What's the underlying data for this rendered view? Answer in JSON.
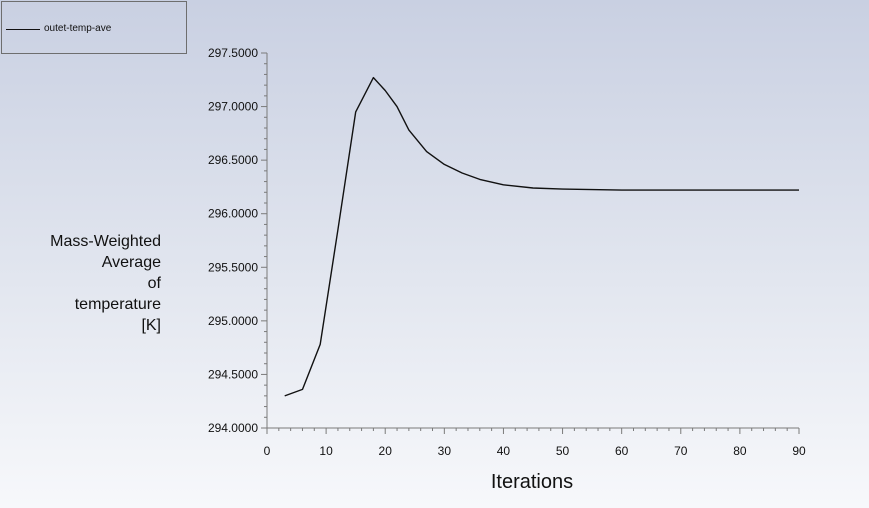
{
  "chart_data": {
    "type": "line",
    "xlabel": "Iterations",
    "ylabel_lines": [
      "Mass-Weighted",
      "Average",
      "of",
      "temperature",
      "[K]"
    ],
    "xlim": [
      0,
      90
    ],
    "ylim": [
      294.0,
      297.5
    ],
    "x_ticks": [
      0,
      10,
      20,
      30,
      40,
      50,
      60,
      70,
      80,
      90
    ],
    "y_ticks": [
      294.0,
      294.5,
      295.0,
      295.5,
      296.0,
      296.5,
      297.0,
      297.5
    ],
    "y_tick_labels": [
      "294.0000",
      "294.5000",
      "295.0000",
      "295.5000",
      "296.0000",
      "296.5000",
      "297.0000",
      "297.5000"
    ],
    "legend_position": "top-left",
    "grid": false,
    "series": [
      {
        "name": "outet-temp-ave",
        "color": "#111111",
        "x": [
          3,
          6,
          9,
          12,
          15,
          18,
          20,
          22,
          24,
          27,
          30,
          33,
          36,
          40,
          45,
          50,
          55,
          60,
          70,
          80,
          90
        ],
        "y": [
          294.3,
          294.36,
          294.78,
          295.85,
          296.95,
          297.27,
          297.15,
          297.0,
          296.78,
          296.58,
          296.46,
          296.38,
          296.32,
          296.27,
          296.24,
          296.23,
          296.225,
          296.22,
          296.22,
          296.22,
          296.22
        ]
      }
    ]
  }
}
